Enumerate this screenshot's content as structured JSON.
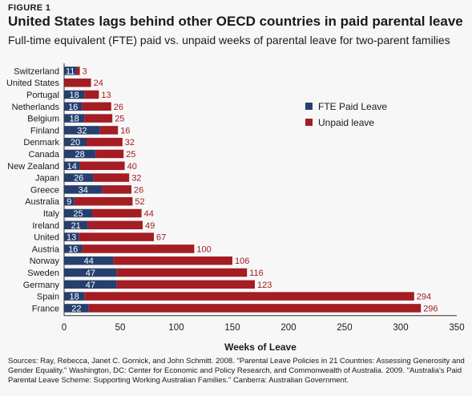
{
  "header": {
    "figure_label": "FIGURE 1",
    "title": "United States lags behind other OECD countries in paid parental leave",
    "subtitle": "Full-time equivalent (FTE) paid vs. unpaid weeks of parental leave for two-parent families"
  },
  "colors": {
    "paid": "#253f6e",
    "unpaid": "#a31d23",
    "background": "#f7f7f7"
  },
  "chart_data": {
    "type": "bar",
    "orientation": "horizontal",
    "stacked": true,
    "categories": [
      "Switzerland",
      "United States",
      "Portugal",
      "Netherlands",
      "Belgium",
      "Finland",
      "Denmark",
      "Canada",
      "New Zealand",
      "Japan",
      "Greece",
      "Australia",
      "Italy",
      "Ireland",
      "United",
      "Austria",
      "Norway",
      "Sweden",
      "Germany",
      "Spain",
      "France"
    ],
    "series": [
      {
        "name": "FTE Paid Leave",
        "values": [
          11,
          0,
          18,
          16,
          18,
          32,
          20,
          28,
          14,
          26,
          34,
          9,
          25,
          21,
          13,
          16,
          44,
          47,
          47,
          18,
          22
        ],
        "labels": [
          "11",
          "",
          "18",
          "16",
          "18",
          "32",
          "20",
          "28",
          "14",
          "26",
          "34",
          "9",
          "25",
          "21",
          "13",
          "16",
          "44",
          "47",
          "47",
          "18",
          "22"
        ]
      },
      {
        "name": "Unpaid leave",
        "values": [
          3,
          24,
          13,
          26,
          25,
          16,
          32,
          25,
          40,
          32,
          26,
          52,
          44,
          49,
          67,
          100,
          106,
          116,
          123,
          294,
          296
        ],
        "labels": [
          "3",
          "24",
          "13",
          "26",
          "25",
          "16",
          "32",
          "25",
          "40",
          "32",
          "26",
          "52",
          "44",
          "49",
          "67",
          "100",
          "106",
          "116",
          "123",
          "294",
          "296"
        ]
      }
    ],
    "xlabel": "Weeks of Leave",
    "xlim": [
      0,
      350
    ],
    "xticks": [
      "0",
      "50",
      "100",
      "150",
      "200",
      "250",
      "300",
      "350"
    ],
    "legend_position": "right",
    "grid": false
  },
  "footer": {
    "sources": "Sources: Ray, Rebecca, Janet C. Gornick, and John Schmitt. 2008. \"Parental Leave Policies in 21 Countries: Assessing Generosity and Gender Equality.\" Washington, DC: Center for Economic and Policy Research, and Commonwealth of Australia. 2009. \"Australia's Paid Parental Leave Scheme: Supporting Working Australian Families.\" Canberra: Australian Government."
  }
}
